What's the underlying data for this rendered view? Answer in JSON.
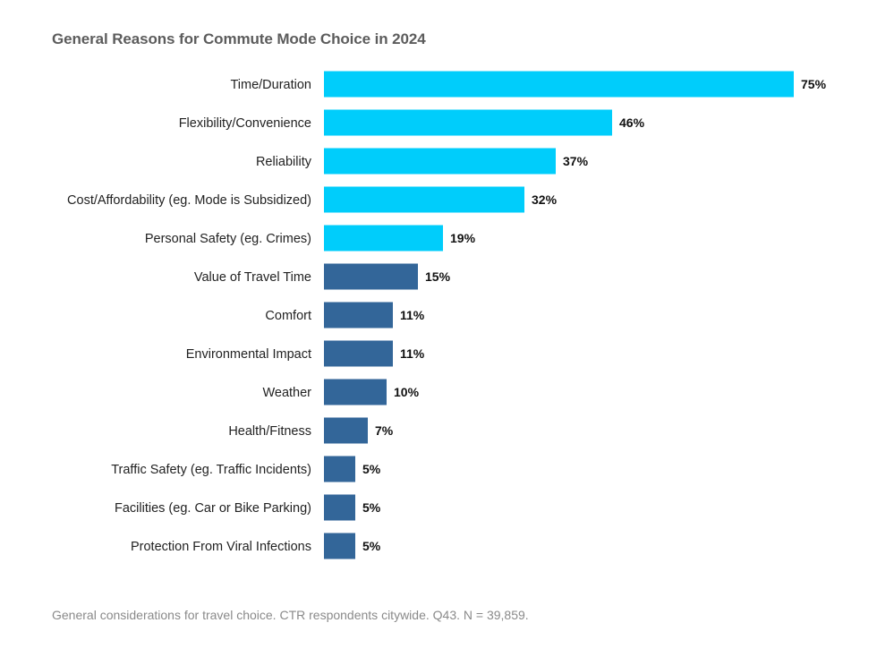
{
  "chart_data": {
    "type": "bar",
    "orientation": "horizontal",
    "title": "General Reasons for Commute Mode Choice in 2024",
    "categories": [
      "Time/Duration",
      "Flexibility/Convenience",
      "Reliability",
      "Cost/Affordability (eg. Mode is Subsidized)",
      "Personal Safety (eg. Crimes)",
      "Value of Travel Time",
      "Comfort",
      "Environmental Impact",
      "Weather",
      "Health/Fitness",
      "Traffic Safety (eg. Traffic Incidents)",
      "Facilities (eg. Car or Bike Parking)",
      "Protection From Viral Infections"
    ],
    "values": [
      75,
      46,
      37,
      32,
      19,
      15,
      11,
      11,
      10,
      7,
      5,
      5,
      5
    ],
    "value_labels": [
      "75%",
      "46%",
      "37%",
      "32%",
      "19%",
      "15%",
      "11%",
      "11%",
      "10%",
      "7%",
      "5%",
      "5%",
      "5%"
    ],
    "highlight_count": 5,
    "xlim": [
      0,
      75
    ],
    "xlabel": "",
    "ylabel": "",
    "grid": false,
    "colors": {
      "highlight": "#00cdfb",
      "default": "#336699",
      "title": "#5c5c5c",
      "category_text": "#222222",
      "value_text": "#111111",
      "footnote": "#8a8a8a"
    }
  },
  "footnote": "General considerations for travel choice. CTR respondents citywide. Q43. N = 39,859."
}
